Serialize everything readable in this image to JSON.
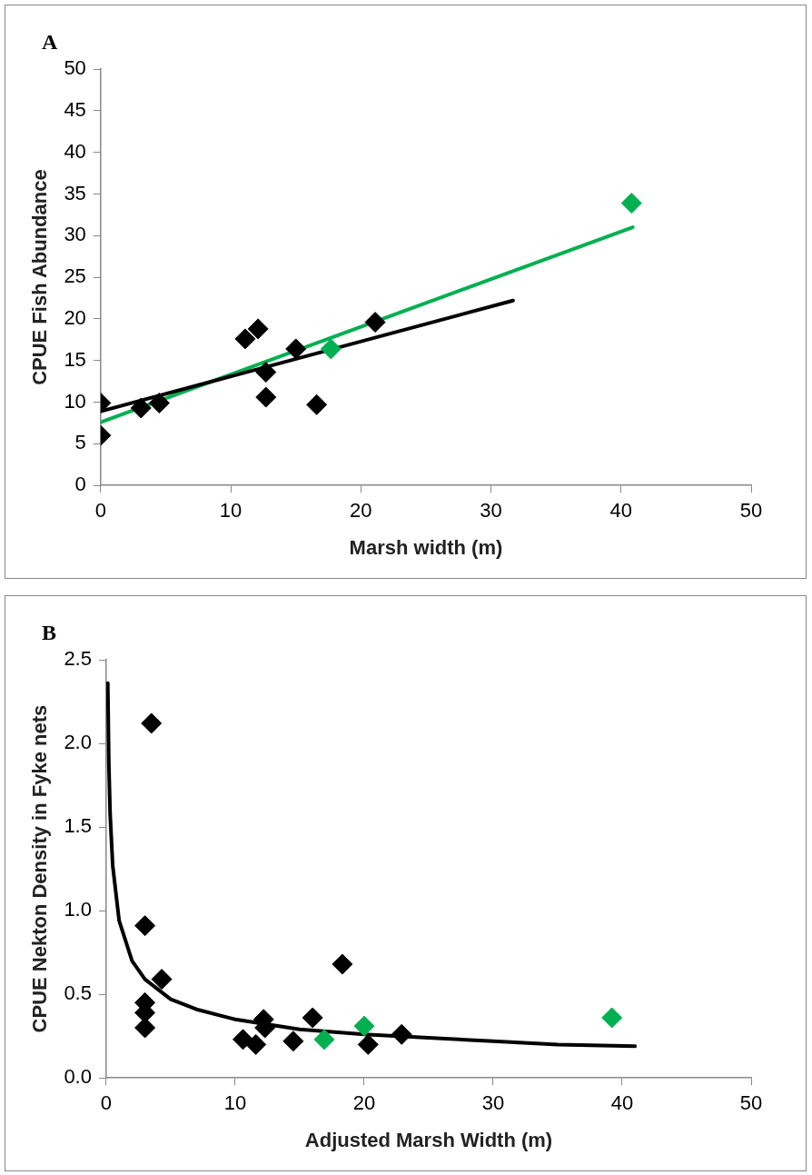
{
  "chart_data": [
    {
      "type": "scatter",
      "annotations": [
        "A"
      ],
      "xlabel": "Marsh width (m)",
      "ylabel": "CPUE Fish Abundance",
      "xlim": [
        0,
        50
      ],
      "xticks": [
        0,
        10,
        20,
        30,
        40,
        50
      ],
      "ylim": [
        0,
        50
      ],
      "yticks": [
        0,
        5,
        10,
        15,
        20,
        25,
        30,
        35,
        40,
        45,
        50
      ],
      "grid": false,
      "legend": false,
      "marker": "diamond",
      "series": [
        {
          "color": "#000000",
          "x": [
            0,
            0,
            3.1,
            4.5,
            11.1,
            12.1,
            15.0,
            12.7,
            12.7,
            16.6,
            21.1
          ],
          "values": [
            9.9,
            6.0,
            9.3,
            9.9,
            17.6,
            18.8,
            16.4,
            13.6,
            10.6,
            9.7,
            19.6
          ]
        },
        {
          "color": "#00b050",
          "x": [
            17.7,
            40.8
          ],
          "values": [
            16.4,
            33.9
          ]
        },
        {
          "type": "line",
          "color": "#000000",
          "marker": "none",
          "x": [
            0,
            31.7
          ],
          "values": [
            8.9,
            22.2
          ]
        },
        {
          "type": "line",
          "color": "#00b050",
          "marker": "none",
          "x": [
            0,
            40.9
          ],
          "values": [
            7.6,
            31.0
          ]
        }
      ]
    },
    {
      "type": "scatter",
      "annotations": [
        "B"
      ],
      "xlabel": "Adjusted Marsh Width (m)",
      "ylabel": "CPUE Nekton Density in Fyke nets",
      "xlim": [
        0,
        50
      ],
      "xticks": [
        0,
        10,
        20,
        30,
        40,
        50
      ],
      "ylim": [
        0,
        2.5
      ],
      "yticks": [
        {
          "value": 0,
          "label": "0.0"
        },
        {
          "value": 0.5,
          "label": "0.5"
        },
        {
          "value": 1,
          "label": "1.0"
        },
        {
          "value": 1.5,
          "label": "1.5"
        },
        {
          "value": 2,
          "label": "2.0"
        },
        {
          "value": 2.5,
          "label": "2.5"
        }
      ],
      "grid": false,
      "legend": false,
      "marker": "diamond",
      "series": [
        {
          "color": "#000000",
          "x": [
            3.5,
            3.0,
            4.3,
            3.0,
            3.0,
            3.0,
            10.6,
            11.6,
            12.2,
            12.3,
            14.5,
            16.0,
            18.3,
            20.3,
            22.9
          ],
          "values": [
            2.12,
            0.91,
            0.59,
            0.45,
            0.39,
            0.3,
            0.23,
            0.2,
            0.35,
            0.3,
            0.22,
            0.36,
            0.68,
            0.2,
            0.26
          ]
        },
        {
          "color": "#00b050",
          "x": [
            16.9,
            20.0,
            39.2
          ],
          "values": [
            0.23,
            0.31,
            0.36
          ]
        },
        {
          "type": "line",
          "color": "#000000",
          "marker": "none",
          "x": [
            0.12,
            0.2,
            0.3,
            0.5,
            1,
            2,
            3,
            5,
            7,
            10,
            15,
            20,
            25,
            30,
            35,
            41
          ],
          "values": [
            2.36,
            1.88,
            1.58,
            1.27,
            0.94,
            0.7,
            0.59,
            0.47,
            0.41,
            0.35,
            0.29,
            0.26,
            0.24,
            0.22,
            0.2,
            0.19
          ]
        }
      ]
    }
  ]
}
